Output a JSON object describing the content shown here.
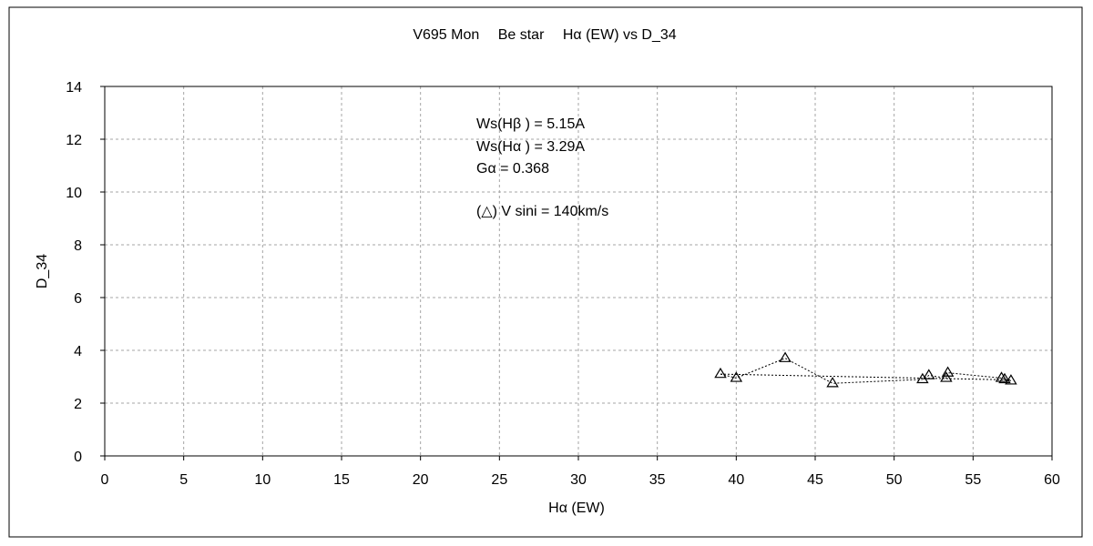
{
  "chart_data": {
    "type": "scatter",
    "title": "V695 Mon　 Be star　 Hα (EW) vs D_34",
    "xlabel": "Hα (EW)",
    "ylabel": "D_34",
    "xlim": [
      0,
      60
    ],
    "ylim": [
      0,
      14
    ],
    "xticks": [
      0,
      5,
      10,
      15,
      20,
      25,
      30,
      35,
      40,
      45,
      50,
      55,
      60
    ],
    "yticks": [
      0,
      2,
      4,
      6,
      8,
      10,
      12,
      14
    ],
    "grid": true,
    "legend": "none",
    "annotations": [
      "Ws(Hβ ) = 5.15A",
      "Ws(Hα ) = 3.29A",
      "Gα = 0.368",
      "(△) V sini = 140km/s"
    ],
    "series": [
      {
        "marker": "triangle-open",
        "connected": true,
        "points": [
          {
            "x": 39.0,
            "y": 3.1
          },
          {
            "x": 40.0,
            "y": 2.95
          },
          {
            "x": 43.1,
            "y": 3.7
          },
          {
            "x": 46.1,
            "y": 2.75
          },
          {
            "x": 51.8,
            "y": 2.9
          },
          {
            "x": 52.2,
            "y": 3.05
          },
          {
            "x": 53.3,
            "y": 2.95
          },
          {
            "x": 53.4,
            "y": 3.15
          },
          {
            "x": 56.8,
            "y": 2.95
          },
          {
            "x": 57.0,
            "y": 2.9
          },
          {
            "x": 57.4,
            "y": 2.85
          }
        ]
      }
    ],
    "trendline": {
      "type": "linear",
      "x": [
        39.0,
        57.4
      ],
      "y": [
        3.1,
        2.88
      ]
    }
  }
}
